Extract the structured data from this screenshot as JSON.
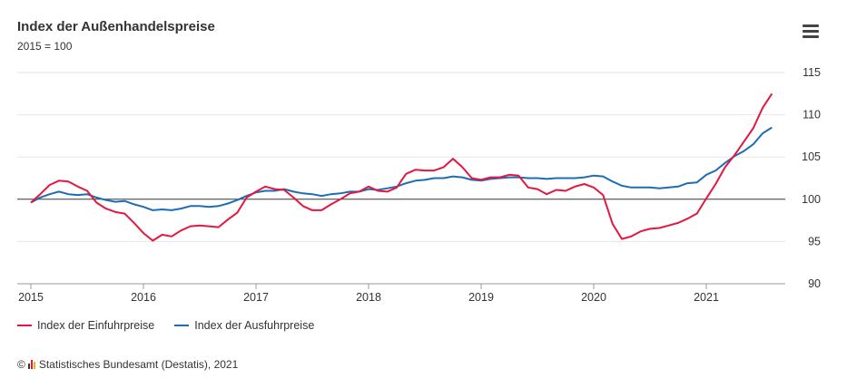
{
  "header": {
    "title": "Index der Außenhandelspreise",
    "subtitle": "2015 = 100"
  },
  "menu_icon": "hamburger-menu-icon",
  "colors": {
    "import": "#e5173f",
    "export": "#1e6db4",
    "baseline": "#333333",
    "grid": "#e6e6e6"
  },
  "legend": [
    {
      "label": "Index der Einfuhrpreise"
    },
    {
      "label": "Index der Ausfuhrpreise"
    }
  ],
  "source": {
    "prefix": "©",
    "text": "Statistisches Bundesamt (Destatis), 2021"
  },
  "chart_data": {
    "type": "line",
    "title": "Index der Außenhandelspreise",
    "subtitle": "2015 = 100",
    "x_start": "2015-01",
    "x_step": "month",
    "x_ticks": [
      "2015",
      "2016",
      "2017",
      "2018",
      "2019",
      "2020",
      "2021"
    ],
    "y_ticks": [
      90,
      95,
      100,
      105,
      110,
      115
    ],
    "ylim": [
      90,
      115
    ],
    "y_axis_side": "right",
    "reference_line": 100,
    "grid": true,
    "legend_position": "bottom-left",
    "series": [
      {
        "name": "Index der Einfuhrpreise",
        "values": [
          99.6,
          100.6,
          101.7,
          102.2,
          102.1,
          101.5,
          101.0,
          99.6,
          98.9,
          98.5,
          98.3,
          97.2,
          96.0,
          95.1,
          95.8,
          95.6,
          96.3,
          96.8,
          96.9,
          96.8,
          96.7,
          97.6,
          98.4,
          100.2,
          100.9,
          101.5,
          101.2,
          101.1,
          100.2,
          99.2,
          98.7,
          98.7,
          99.4,
          100.0,
          100.7,
          100.9,
          101.5,
          101.0,
          100.9,
          101.4,
          103.0,
          103.5,
          103.4,
          103.4,
          103.8,
          104.8,
          103.8,
          102.5,
          102.3,
          102.6,
          102.6,
          102.9,
          102.8,
          101.4,
          101.2,
          100.6,
          101.1,
          101.0,
          101.5,
          101.8,
          101.4,
          100.5,
          97.1,
          95.3,
          95.6,
          96.2,
          96.5,
          96.6,
          96.9,
          97.2,
          97.7,
          98.3,
          100.1,
          101.8,
          103.8,
          105.2,
          106.8,
          108.4,
          110.8,
          112.5
        ]
      },
      {
        "name": "Index der Ausfuhrpreise",
        "values": [
          99.6,
          100.2,
          100.6,
          100.9,
          100.6,
          100.5,
          100.6,
          100.2,
          99.9,
          99.7,
          99.8,
          99.4,
          99.1,
          98.7,
          98.8,
          98.7,
          98.9,
          99.2,
          99.2,
          99.1,
          99.2,
          99.5,
          99.9,
          100.4,
          100.8,
          101.0,
          101.0,
          101.2,
          100.9,
          100.7,
          100.6,
          100.4,
          100.6,
          100.7,
          100.9,
          100.9,
          101.2,
          101.1,
          101.3,
          101.5,
          101.9,
          102.2,
          102.3,
          102.5,
          102.5,
          102.7,
          102.6,
          102.3,
          102.2,
          102.4,
          102.5,
          102.6,
          102.6,
          102.5,
          102.5,
          102.4,
          102.5,
          102.5,
          102.5,
          102.6,
          102.8,
          102.7,
          102.1,
          101.6,
          101.4,
          101.4,
          101.4,
          101.3,
          101.4,
          101.5,
          101.9,
          102.0,
          102.9,
          103.4,
          104.3,
          105.1,
          105.7,
          106.5,
          107.8,
          108.5
        ]
      }
    ]
  }
}
